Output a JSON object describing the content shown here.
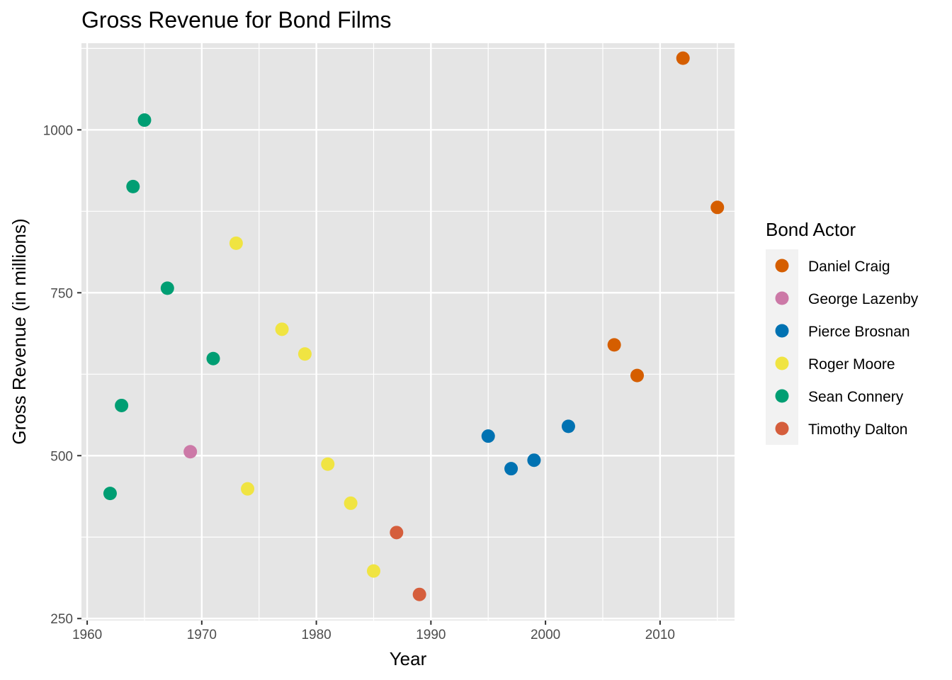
{
  "chart_data": {
    "type": "scatter",
    "title": "Gross Revenue for Bond Films",
    "xlabel": "Year",
    "ylabel": "Gross Revenue (in millions)",
    "xlim": [
      1959.5,
      2016.5
    ],
    "ylim": [
      247,
      1133
    ],
    "x_ticks": [
      1960,
      1970,
      1980,
      1990,
      2000,
      2010
    ],
    "x_tick_labels": [
      "1960",
      "1970",
      "1980",
      "1990",
      "2000",
      "2010"
    ],
    "y_ticks": [
      250,
      500,
      750,
      1000
    ],
    "y_tick_labels": [
      "250",
      "500",
      "750",
      "1000"
    ],
    "grid": true,
    "legend_title": "Bond Actor",
    "legend_position": "right",
    "series": [
      {
        "name": "Daniel Craig",
        "color": "#D55E00",
        "points": [
          [
            2006,
            670
          ],
          [
            2008,
            623
          ],
          [
            2012,
            1110
          ],
          [
            2015,
            881
          ]
        ]
      },
      {
        "name": "George Lazenby",
        "color": "#CC79A7",
        "points": [
          [
            1969,
            506
          ]
        ]
      },
      {
        "name": "Pierce Brosnan",
        "color": "#0072B2",
        "points": [
          [
            1995,
            530
          ],
          [
            1997,
            480
          ],
          [
            1999,
            493
          ],
          [
            2002,
            545
          ]
        ]
      },
      {
        "name": "Roger Moore",
        "color": "#F0E442",
        "points": [
          [
            1973,
            826
          ],
          [
            1974,
            449
          ],
          [
            1977,
            694
          ],
          [
            1979,
            656
          ],
          [
            1981,
            487
          ],
          [
            1983,
            427
          ],
          [
            1985,
            323
          ]
        ]
      },
      {
        "name": "Sean Connery",
        "color": "#009E73",
        "points": [
          [
            1962,
            442
          ],
          [
            1963,
            577
          ],
          [
            1964,
            913
          ],
          [
            1965,
            1015
          ],
          [
            1967,
            757
          ],
          [
            1971,
            649
          ]
        ]
      },
      {
        "name": "Timothy Dalton",
        "color": "#D55E3C",
        "points": [
          [
            1987,
            382
          ],
          [
            1989,
            287
          ]
        ]
      }
    ]
  }
}
